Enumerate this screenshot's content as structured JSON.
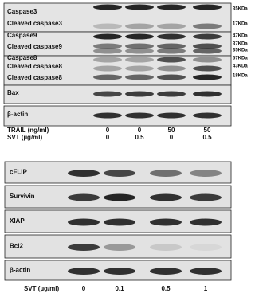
{
  "panel_a": {
    "rows": [
      {
        "labels": [
          "Caspase3",
          "Cleaved caspase3"
        ],
        "markers": [
          "35KDa",
          "17KDa"
        ]
      },
      {
        "labels": [
          "Caspase9",
          "Cleaved caspase9"
        ],
        "markers": [
          "47KDa",
          "37KDa",
          "35KDa"
        ]
      },
      {
        "labels": [
          "Caspase8",
          "Cleaved caspase8",
          "Cleaved caspase8"
        ],
        "markers": [
          "57KDa",
          "43KDa",
          "18KDa"
        ]
      },
      {
        "labels": [
          "Bax"
        ],
        "markers": []
      },
      {
        "labels": [
          "β-actin"
        ],
        "markers": []
      }
    ],
    "treatments": [
      {
        "label": "TRAIL (ng/ml)",
        "values": [
          0,
          0,
          50,
          50
        ]
      },
      {
        "label": "SVT (µg/ml)",
        "values": [
          0,
          0.5,
          0,
          0.5
        ]
      }
    ]
  },
  "panel_b": {
    "rows": [
      {
        "labels": [
          "cFLIP"
        ]
      },
      {
        "labels": [
          "Survivin"
        ]
      },
      {
        "labels": [
          "XIAP"
        ]
      },
      {
        "labels": [
          "Bcl2"
        ]
      },
      {
        "labels": [
          "β-actin"
        ]
      }
    ],
    "treatments": [
      {
        "label": "SVT (µg/ml)",
        "values": [
          0,
          0.1,
          0.5,
          1
        ]
      }
    ]
  }
}
